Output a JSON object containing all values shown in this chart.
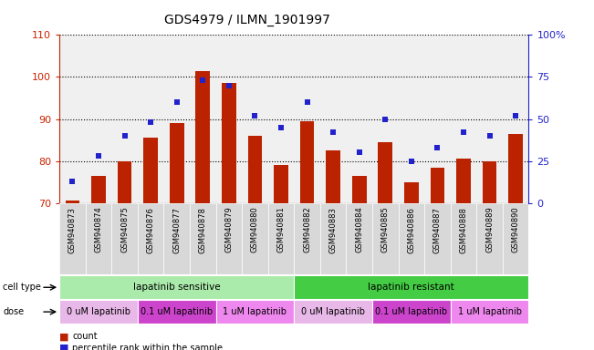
{
  "title": "GDS4979 / ILMN_1901997",
  "samples": [
    "GSM940873",
    "GSM940874",
    "GSM940875",
    "GSM940876",
    "GSM940877",
    "GSM940878",
    "GSM940879",
    "GSM940880",
    "GSM940881",
    "GSM940882",
    "GSM940883",
    "GSM940884",
    "GSM940885",
    "GSM940886",
    "GSM940887",
    "GSM940888",
    "GSM940889",
    "GSM940890"
  ],
  "count_values": [
    70.5,
    76.5,
    80.0,
    85.5,
    89.0,
    101.5,
    98.5,
    86.0,
    79.0,
    89.5,
    82.5,
    76.5,
    84.5,
    75.0,
    78.5,
    80.5,
    80.0,
    86.5
  ],
  "percentile_values": [
    13,
    28,
    40,
    48,
    60,
    73,
    70,
    52,
    45,
    60,
    42,
    30,
    50,
    25,
    33,
    42,
    40,
    52
  ],
  "ylim_left": [
    70,
    110
  ],
  "ylim_right": [
    0,
    100
  ],
  "right_yticks": [
    0,
    25,
    50,
    75,
    100
  ],
  "right_yticklabels": [
    "0",
    "25",
    "50",
    "75",
    "100%"
  ],
  "left_yticks": [
    70,
    80,
    90,
    100,
    110
  ],
  "bar_color": "#bb2200",
  "dot_color": "#2222cc",
  "grid_color": "black",
  "cell_type_groups": [
    {
      "label": "lapatinib sensitive",
      "start": 0,
      "end": 9,
      "color": "#aaeaaa"
    },
    {
      "label": "lapatinib resistant",
      "start": 9,
      "end": 18,
      "color": "#44cc44"
    }
  ],
  "dose_groups": [
    {
      "label": "0 uM lapatinib",
      "start": 0,
      "end": 3,
      "color": "#e8b8e8"
    },
    {
      "label": "0.1 uM lapatinib",
      "start": 3,
      "end": 6,
      "color": "#cc44cc"
    },
    {
      "label": "1 uM lapatinib",
      "start": 6,
      "end": 9,
      "color": "#ee88ee"
    },
    {
      "label": "0 uM lapatinib",
      "start": 9,
      "end": 12,
      "color": "#e8b8e8"
    },
    {
      "label": "0.1 uM lapatinib",
      "start": 12,
      "end": 15,
      "color": "#cc44cc"
    },
    {
      "label": "1 uM lapatinib",
      "start": 15,
      "end": 18,
      "color": "#ee88ee"
    }
  ],
  "legend_count_color": "#bb2200",
  "legend_dot_color": "#2222cc",
  "bg_color": "#ffffff",
  "plot_bg_color": "#f0f0f0",
  "left_axis_color": "#cc2200",
  "right_axis_color": "#2222cc",
  "xtick_bg_color": "#d8d8d8"
}
